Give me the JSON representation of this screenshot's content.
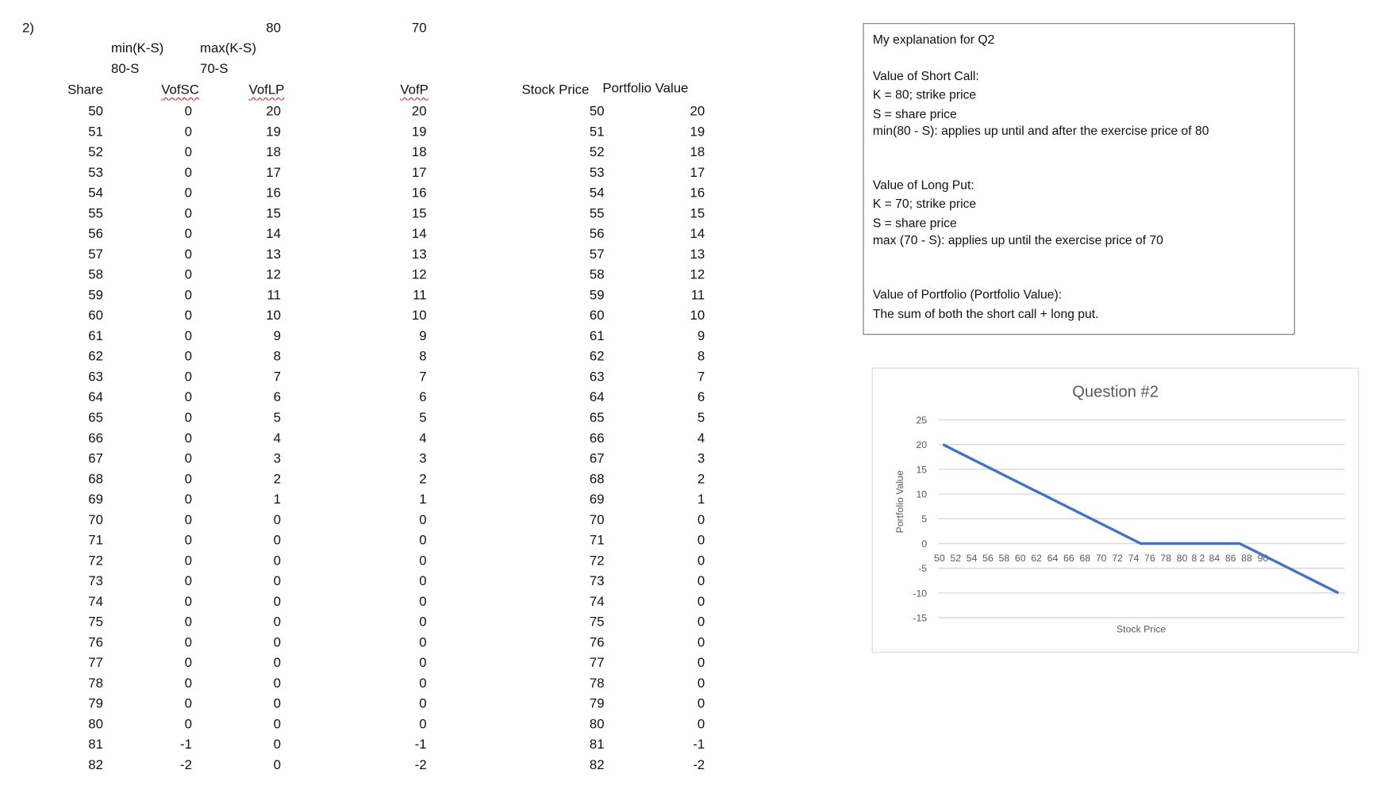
{
  "sheet": {
    "question_label": "2)",
    "strike_call": "80",
    "strike_put": "70",
    "formula_call": "min(K-S)",
    "formula_put": "max(K-S)",
    "expr_call": "80-S",
    "expr_put": "70-S",
    "headers": {
      "share": "Share",
      "vofsc": "VofSC",
      "voflp": "VofLP",
      "vofp": "VofP",
      "stock_price": "Stock Price",
      "portfolio_value": "Portfolio Value"
    },
    "rows": [
      [
        50,
        0,
        20,
        20,
        50,
        20
      ],
      [
        51,
        0,
        19,
        19,
        51,
        19
      ],
      [
        52,
        0,
        18,
        18,
        52,
        18
      ],
      [
        53,
        0,
        17,
        17,
        53,
        17
      ],
      [
        54,
        0,
        16,
        16,
        54,
        16
      ],
      [
        55,
        0,
        15,
        15,
        55,
        15
      ],
      [
        56,
        0,
        14,
        14,
        56,
        14
      ],
      [
        57,
        0,
        13,
        13,
        57,
        13
      ],
      [
        58,
        0,
        12,
        12,
        58,
        12
      ],
      [
        59,
        0,
        11,
        11,
        59,
        11
      ],
      [
        60,
        0,
        10,
        10,
        60,
        10
      ],
      [
        61,
        0,
        9,
        9,
        61,
        9
      ],
      [
        62,
        0,
        8,
        8,
        62,
        8
      ],
      [
        63,
        0,
        7,
        7,
        63,
        7
      ],
      [
        64,
        0,
        6,
        6,
        64,
        6
      ],
      [
        65,
        0,
        5,
        5,
        65,
        5
      ],
      [
        66,
        0,
        4,
        4,
        66,
        4
      ],
      [
        67,
        0,
        3,
        3,
        67,
        3
      ],
      [
        68,
        0,
        2,
        2,
        68,
        2
      ],
      [
        69,
        0,
        1,
        1,
        69,
        1
      ],
      [
        70,
        0,
        0,
        0,
        70,
        0
      ],
      [
        71,
        0,
        0,
        0,
        71,
        0
      ],
      [
        72,
        0,
        0,
        0,
        72,
        0
      ],
      [
        73,
        0,
        0,
        0,
        73,
        0
      ],
      [
        74,
        0,
        0,
        0,
        74,
        0
      ],
      [
        75,
        0,
        0,
        0,
        75,
        0
      ],
      [
        76,
        0,
        0,
        0,
        76,
        0
      ],
      [
        77,
        0,
        0,
        0,
        77,
        0
      ],
      [
        78,
        0,
        0,
        0,
        78,
        0
      ],
      [
        79,
        0,
        0,
        0,
        79,
        0
      ],
      [
        80,
        0,
        0,
        0,
        80,
        0
      ],
      [
        81,
        -1,
        0,
        -1,
        81,
        -1
      ],
      [
        82,
        -2,
        0,
        -2,
        82,
        -2
      ]
    ]
  },
  "explanation": {
    "lines": [
      "My explanation for Q2",
      "Value of Short Call:",
      "K = 80; strike price",
      "S = share price",
      "min(80 - S): applies up until and after the exercise price of 80",
      "Value of Long Put:",
      "K = 70; strike price",
      "S = share price",
      "max (70 - S): applies up until the exercise price of 70",
      "Value of Portfolio (Portfolio Value):",
      "The sum of both the short call + long put."
    ]
  },
  "chart_data": {
    "type": "line",
    "title": "Question #2",
    "xlabel": "Stock Price",
    "ylabel": "Portfolio Value",
    "ylim": [
      -15,
      25
    ],
    "yticks": [
      25,
      20,
      15,
      10,
      5,
      0,
      -5,
      -10,
      -15
    ],
    "xtick_labels": [
      "50",
      "52",
      "54",
      "56",
      "58",
      "60",
      "62",
      "64",
      "66",
      "68",
      "70",
      "72",
      "74",
      "76",
      "78",
      "80",
      "8 2",
      "84",
      "86",
      "88",
      "90"
    ],
    "grid": true,
    "line_color": "#4472c4",
    "x": [
      50,
      51,
      52,
      53,
      54,
      55,
      56,
      57,
      58,
      59,
      60,
      61,
      62,
      63,
      64,
      65,
      66,
      67,
      68,
      69,
      70,
      71,
      72,
      73,
      74,
      75,
      76,
      77,
      78,
      79,
      80,
      81,
      82,
      83,
      84,
      85,
      86,
      87,
      88,
      89,
      90
    ],
    "y": [
      20,
      19,
      18,
      17,
      16,
      15,
      14,
      13,
      12,
      11,
      10,
      9,
      8,
      7,
      6,
      5,
      4,
      3,
      2,
      1,
      0,
      0,
      0,
      0,
      0,
      0,
      0,
      0,
      0,
      0,
      0,
      -1,
      -2,
      -3,
      -4,
      -5,
      -6,
      -7,
      -8,
      -9,
      -10
    ]
  }
}
